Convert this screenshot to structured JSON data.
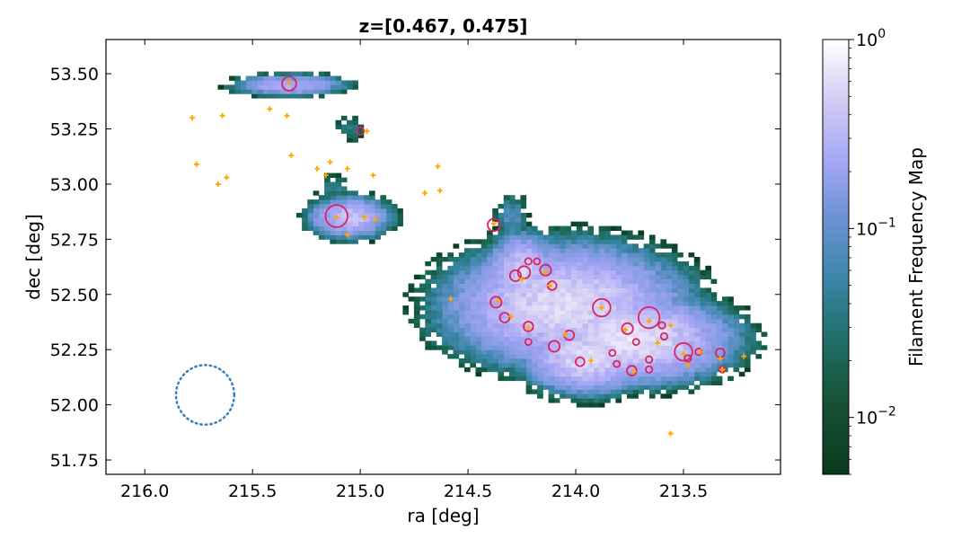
{
  "chart_data": {
    "type": "heatmap",
    "title": "z=[0.467, 0.475]",
    "xlabel": "ra [deg]",
    "ylabel": "dec [deg]",
    "xlim": [
      216.18,
      213.05
    ],
    "ylim": [
      51.685,
      53.655
    ],
    "x_inverted": true,
    "xticks": [
      216.0,
      215.5,
      215.0,
      214.5,
      214.0,
      213.5
    ],
    "xtick_labels": [
      "216.0",
      "215.5",
      "215.0",
      "214.5",
      "214.0",
      "213.5"
    ],
    "yticks": [
      51.75,
      52.0,
      52.25,
      52.5,
      52.75,
      53.0,
      53.25,
      53.5
    ],
    "ytick_labels": [
      "51.75",
      "52.00",
      "52.25",
      "52.50",
      "52.75",
      "53.00",
      "53.25",
      "53.50"
    ],
    "grid": false,
    "colorbar": {
      "label": "Filament Frequency Map",
      "scale": "log",
      "range": [
        0.005,
        1.0
      ],
      "ticks": [
        {
          "value": 1.0,
          "base": "10",
          "exp": "0"
        },
        {
          "value": 0.1,
          "base": "10",
          "exp": "−1"
        },
        {
          "value": 0.01,
          "base": "10",
          "exp": "−2"
        }
      ],
      "colors": [
        "#0a3a1e",
        "#1b6a5a",
        "#3b86a9",
        "#7e9ae0",
        "#a8a6f6",
        "#d6d0f5",
        "#ffffff"
      ]
    },
    "filament_regions": [
      {
        "ra": 215.33,
        "dec": 53.45,
        "radius": 0.07,
        "peak": 0.2,
        "spread": [
          3.2,
          0.6
        ]
      },
      {
        "ra": 215.05,
        "dec": 53.25,
        "radius": 0.07,
        "peak": 0.02,
        "spread": [
          1.2,
          1.0
        ]
      },
      {
        "ra": 215.05,
        "dec": 52.85,
        "radius": 0.1,
        "peak": 0.3,
        "spread": [
          1.6,
          0.8
        ]
      },
      {
        "ra": 215.12,
        "dec": 52.98,
        "radius": 0.08,
        "peak": 0.02,
        "spread": [
          1.4,
          1.0
        ]
      },
      {
        "ra": 214.3,
        "dec": 52.85,
        "radius": 0.08,
        "peak": 0.04,
        "spread": [
          1.0,
          1.4
        ]
      },
      {
        "ra": 214.05,
        "dec": 52.45,
        "radius": 0.25,
        "peak": 0.5,
        "spread": [
          1.8,
          0.9
        ]
      },
      {
        "ra": 213.75,
        "dec": 52.3,
        "radius": 0.2,
        "peak": 0.6,
        "spread": [
          1.9,
          0.8
        ]
      },
      {
        "ra": 214.25,
        "dec": 52.6,
        "radius": 0.12,
        "peak": 0.4,
        "spread": [
          1.2,
          1.2
        ]
      },
      {
        "ra": 213.95,
        "dec": 52.22,
        "radius": 0.15,
        "peak": 0.5,
        "spread": [
          1.6,
          0.9
        ]
      }
    ],
    "galaxies_orange": [
      [
        215.78,
        53.3
      ],
      [
        215.64,
        53.31
      ],
      [
        215.42,
        53.34
      ],
      [
        215.34,
        53.31
      ],
      [
        215.76,
        53.09
      ],
      [
        215.66,
        53.0
      ],
      [
        215.62,
        53.03
      ],
      [
        215.32,
        53.13
      ],
      [
        215.2,
        53.07
      ],
      [
        215.14,
        53.1
      ],
      [
        215.06,
        53.07
      ],
      [
        214.94,
        53.04
      ],
      [
        214.7,
        52.96
      ],
      [
        214.63,
        52.97
      ],
      [
        214.64,
        53.08
      ],
      [
        215.16,
        53.04
      ],
      [
        214.97,
        53.24
      ],
      [
        215.11,
        52.85
      ],
      [
        215.06,
        52.77
      ],
      [
        214.98,
        52.85
      ],
      [
        214.93,
        52.84
      ],
      [
        214.58,
        52.48
      ],
      [
        214.38,
        52.82
      ],
      [
        214.36,
        52.47
      ],
      [
        214.3,
        52.4
      ],
      [
        214.25,
        52.57
      ],
      [
        214.22,
        52.35
      ],
      [
        214.14,
        52.6
      ],
      [
        214.12,
        52.54
      ],
      [
        214.05,
        52.32
      ],
      [
        213.93,
        52.2
      ],
      [
        213.88,
        52.44
      ],
      [
        213.77,
        52.34
      ],
      [
        213.73,
        52.15
      ],
      [
        213.66,
        52.38
      ],
      [
        213.62,
        52.28
      ],
      [
        213.56,
        52.36
      ],
      [
        213.5,
        52.23
      ],
      [
        213.48,
        52.18
      ],
      [
        213.42,
        52.24
      ],
      [
        213.33,
        52.21
      ],
      [
        213.32,
        52.16
      ],
      [
        213.22,
        52.22
      ],
      [
        213.56,
        51.87
      ],
      [
        215.33,
        53.46
      ]
    ],
    "groups_red_circles": [
      {
        "ra": 215.33,
        "dec": 53.455,
        "r": 0.032
      },
      {
        "ra": 215.0,
        "dec": 53.24,
        "r": 0.017
      },
      {
        "ra": 215.11,
        "dec": 52.855,
        "r": 0.05
      },
      {
        "ra": 214.38,
        "dec": 52.815,
        "r": 0.028
      },
      {
        "ra": 214.37,
        "dec": 52.465,
        "r": 0.025
      },
      {
        "ra": 214.33,
        "dec": 52.395,
        "r": 0.022
      },
      {
        "ra": 214.28,
        "dec": 52.585,
        "r": 0.025
      },
      {
        "ra": 214.24,
        "dec": 52.6,
        "r": 0.028
      },
      {
        "ra": 214.22,
        "dec": 52.65,
        "r": 0.015
      },
      {
        "ra": 214.18,
        "dec": 52.65,
        "r": 0.013
      },
      {
        "ra": 214.14,
        "dec": 52.61,
        "r": 0.025
      },
      {
        "ra": 214.11,
        "dec": 52.54,
        "r": 0.02
      },
      {
        "ra": 214.22,
        "dec": 52.355,
        "r": 0.022
      },
      {
        "ra": 214.22,
        "dec": 52.285,
        "r": 0.012
      },
      {
        "ra": 214.1,
        "dec": 52.265,
        "r": 0.025
      },
      {
        "ra": 214.03,
        "dec": 52.315,
        "r": 0.022
      },
      {
        "ra": 213.98,
        "dec": 52.195,
        "r": 0.02
      },
      {
        "ra": 213.88,
        "dec": 52.44,
        "r": 0.04
      },
      {
        "ra": 213.83,
        "dec": 52.235,
        "r": 0.012
      },
      {
        "ra": 213.81,
        "dec": 52.185,
        "r": 0.012
      },
      {
        "ra": 213.76,
        "dec": 52.345,
        "r": 0.025
      },
      {
        "ra": 213.74,
        "dec": 52.155,
        "r": 0.022
      },
      {
        "ra": 213.72,
        "dec": 52.285,
        "r": 0.012
      },
      {
        "ra": 213.66,
        "dec": 52.395,
        "r": 0.048
      },
      {
        "ra": 213.66,
        "dec": 52.205,
        "r": 0.015
      },
      {
        "ra": 213.66,
        "dec": 52.16,
        "r": 0.015
      },
      {
        "ra": 213.6,
        "dec": 52.36,
        "r": 0.015
      },
      {
        "ra": 213.59,
        "dec": 52.31,
        "r": 0.015
      },
      {
        "ra": 213.5,
        "dec": 52.24,
        "r": 0.04
      },
      {
        "ra": 213.48,
        "dec": 52.21,
        "r": 0.015
      },
      {
        "ra": 213.43,
        "dec": 52.24,
        "r": 0.015
      },
      {
        "ra": 213.33,
        "dec": 52.235,
        "r": 0.02
      },
      {
        "ra": 213.32,
        "dec": 52.16,
        "r": 0.013
      }
    ],
    "beam_circle": {
      "ra": 215.72,
      "dec": 52.045,
      "radius_ra": 0.135,
      "radius_dec": 0.135,
      "style": "dotted",
      "color": "#3b7fba"
    },
    "marker_colors": {
      "galaxies": "#ffa500",
      "groups": "#d9245f"
    }
  }
}
